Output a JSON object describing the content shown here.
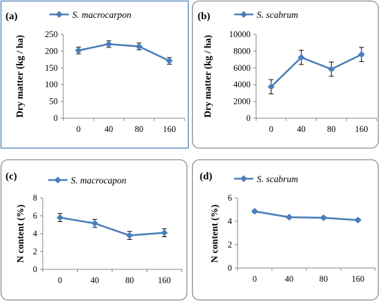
{
  "chart_data": [
    {
      "type": "line",
      "panel_label": "(a)",
      "categories": [
        "0",
        "40",
        "80",
        "160"
      ],
      "series": [
        {
          "name": "S. macrocarpon",
          "values": [
            202,
            221,
            214,
            171
          ],
          "errors": [
            10,
            10,
            10,
            10
          ]
        }
      ],
      "ylabel": "Dry matter (kg / ha)",
      "ylim": [
        0,
        250
      ],
      "yticks": [
        "0",
        "50",
        "100",
        "150",
        "200",
        "250"
      ],
      "legend": "top",
      "grid": false,
      "color": "#4a7ebb"
    },
    {
      "type": "line",
      "panel_label": "(b)",
      "categories": [
        "0",
        "40",
        "80",
        "160"
      ],
      "series": [
        {
          "name": "S. scabrum",
          "values": [
            3750,
            7250,
            5850,
            7600
          ],
          "errors": [
            850,
            850,
            850,
            850
          ]
        }
      ],
      "ylabel": "Dry matter (kg / ha)",
      "ylim": [
        0,
        10000
      ],
      "yticks": [
        "0",
        "2000",
        "4000",
        "6000",
        "8000",
        "10000"
      ],
      "legend": "top",
      "grid": false,
      "color": "#4a7ebb"
    },
    {
      "type": "line",
      "panel_label": "(c)",
      "categories": [
        "0",
        "40",
        "80",
        "160"
      ],
      "series": [
        {
          "name": "S. macrocapon",
          "values": [
            5.8,
            5.15,
            3.8,
            4.1
          ],
          "errors": [
            0.45,
            0.45,
            0.45,
            0.45
          ]
        }
      ],
      "ylabel": "N content (%)",
      "ylim": [
        0,
        8
      ],
      "yticks": [
        "0",
        "2",
        "4",
        "6",
        "8"
      ],
      "legend": "top",
      "grid": false,
      "color": "#4a7ebb"
    },
    {
      "type": "line",
      "panel_label": "(d)",
      "categories": [
        "0",
        "40",
        "80",
        "160"
      ],
      "series": [
        {
          "name": "S. scabrum",
          "values": [
            4.85,
            4.35,
            4.3,
            4.1
          ],
          "errors": [
            0.1,
            0.1,
            0.1,
            0.1
          ]
        }
      ],
      "ylabel": "N content (%)",
      "ylim": [
        0,
        6
      ],
      "yticks": [
        "0",
        "2",
        "4",
        "6"
      ],
      "legend": "top",
      "grid": false,
      "color": "#4a7ebb"
    }
  ]
}
